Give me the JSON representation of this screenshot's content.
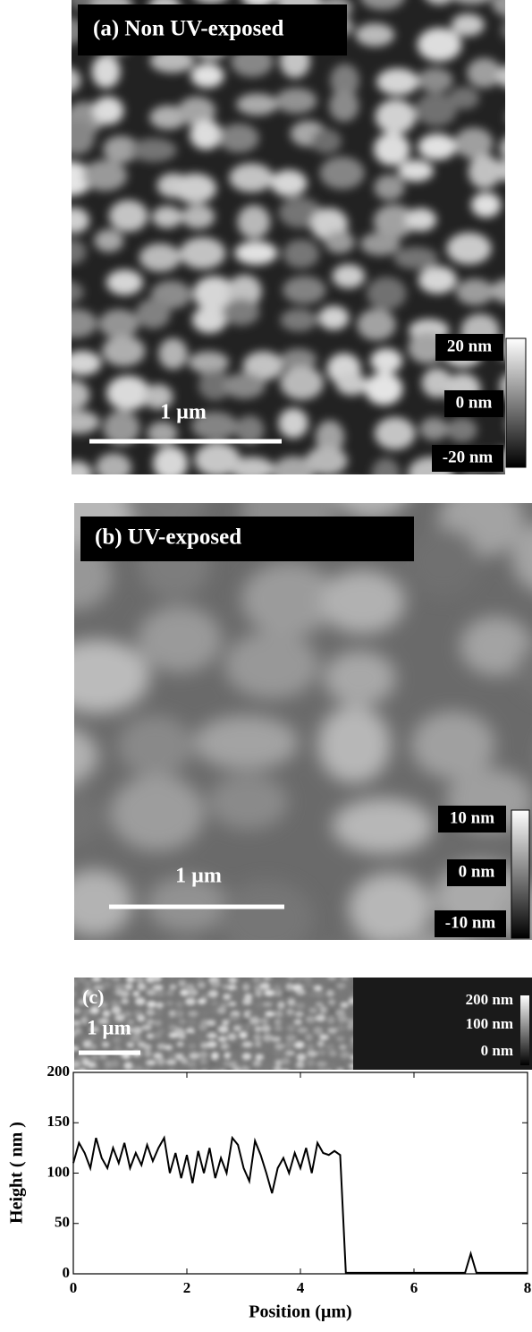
{
  "panels": [
    {
      "label": "(a) Non UV-exposed",
      "scale_bar": "1 µm",
      "colorbar": [
        "20 nm",
        "0 nm",
        "-20 nm"
      ]
    },
    {
      "label": "(b) UV-exposed",
      "scale_bar": "1 µm",
      "colorbar": [
        "10 nm",
        "0 nm",
        "-10 nm"
      ]
    },
    {
      "label": "(c)",
      "scale_bar": "1 µm",
      "colorbar": [
        "200 nm",
        "100 nm",
        "0 nm"
      ]
    }
  ],
  "chart_data": {
    "type": "line",
    "x_label": "Position (µm)",
    "y_label": "Height ( nm )",
    "x": [
      0,
      0.1,
      0.2,
      0.3,
      0.4,
      0.5,
      0.6,
      0.7,
      0.8,
      0.9,
      1.0,
      1.1,
      1.2,
      1.3,
      1.4,
      1.5,
      1.6,
      1.7,
      1.8,
      1.9,
      2.0,
      2.1,
      2.2,
      2.3,
      2.4,
      2.5,
      2.6,
      2.7,
      2.8,
      2.9,
      3.0,
      3.1,
      3.2,
      3.3,
      3.4,
      3.5,
      3.6,
      3.7,
      3.8,
      3.9,
      4.0,
      4.1,
      4.2,
      4.3,
      4.4,
      4.5,
      4.6,
      4.7,
      4.8,
      4.9,
      5.0,
      5.1,
      5.2,
      5.3,
      5.4,
      5.5,
      5.6,
      5.7,
      5.8,
      5.9,
      6.0,
      6.1,
      6.2,
      6.3,
      6.4,
      6.5,
      6.6,
      6.7,
      6.8,
      6.9,
      7.0,
      7.1,
      7.2,
      7.3,
      7.4,
      7.5,
      7.6,
      7.7,
      7.8,
      7.9,
      8.0
    ],
    "values": [
      110,
      130,
      120,
      105,
      135,
      115,
      105,
      125,
      110,
      130,
      105,
      120,
      108,
      128,
      112,
      125,
      135,
      100,
      120,
      95,
      118,
      90,
      122,
      100,
      125,
      95,
      115,
      100,
      135,
      128,
      105,
      92,
      132,
      118,
      100,
      80,
      105,
      115,
      100,
      120,
      105,
      125,
      100,
      130,
      120,
      118,
      122,
      118,
      1,
      1,
      1,
      1,
      1,
      1,
      1,
      1,
      1,
      1,
      1,
      1,
      1,
      1,
      1,
      1,
      1,
      1,
      1,
      1,
      1,
      1,
      20,
      1,
      1,
      1,
      1,
      1,
      1,
      1,
      1,
      1,
      1
    ],
    "color": "#000000",
    "xlim": [
      0,
      8
    ],
    "xticks": [
      0,
      2,
      4,
      6,
      8
    ],
    "ylim": [
      0,
      200
    ],
    "yticks": [
      0,
      50,
      100,
      150,
      200
    ]
  }
}
